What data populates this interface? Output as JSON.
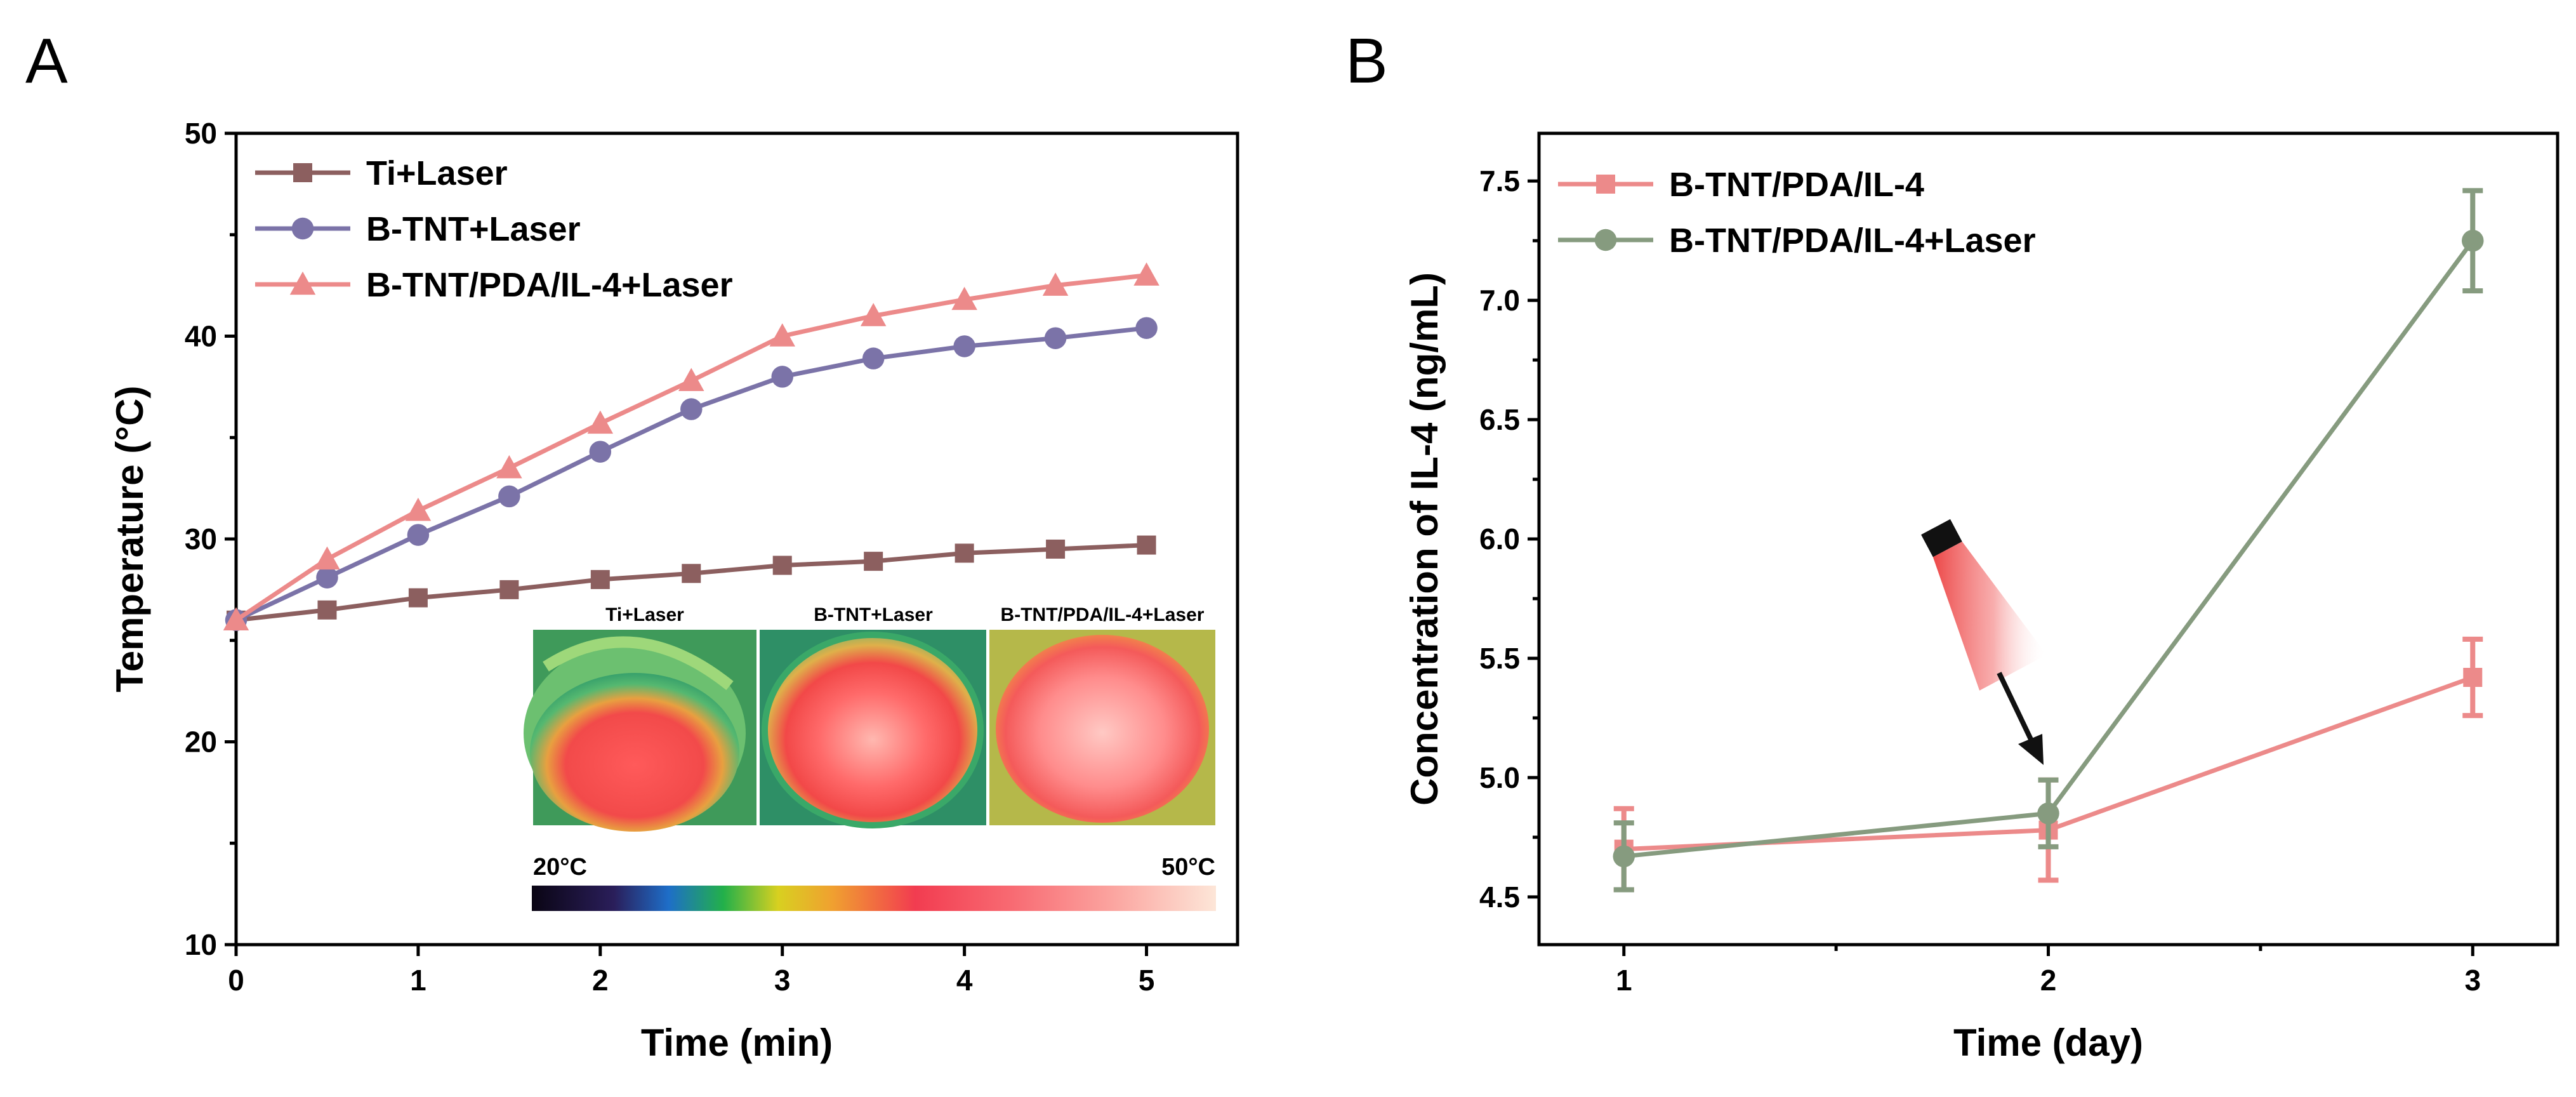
{
  "chart_data": [
    {
      "panel": "A",
      "type": "line",
      "xlabel": "Time (min)",
      "ylabel": "Temperature (°C)",
      "xlim": [
        0,
        5.5
      ],
      "ylim": [
        10,
        50
      ],
      "xticks": [
        0,
        1,
        2,
        3,
        4,
        5
      ],
      "yticks": [
        10,
        20,
        30,
        40,
        50
      ],
      "legend_position": "top-left",
      "x": [
        0,
        0.5,
        1,
        1.5,
        2,
        2.5,
        3,
        3.5,
        4,
        4.5,
        5
      ],
      "series": [
        {
          "name": "Ti+Laser",
          "color": "#8c5f5f",
          "marker": "square",
          "values": [
            26.0,
            26.5,
            27.1,
            27.5,
            28.0,
            28.3,
            28.7,
            28.9,
            29.3,
            29.5,
            29.7
          ]
        },
        {
          "name": "B-TNT+Laser",
          "color": "#7b73a8",
          "marker": "circle",
          "values": [
            26.0,
            28.1,
            30.2,
            32.1,
            34.3,
            36.4,
            38.0,
            38.9,
            39.5,
            39.9,
            40.4
          ]
        },
        {
          "name": "B-TNT/PDA/IL-4+Laser",
          "color": "#ec8a8a",
          "marker": "triangle",
          "values": [
            26.0,
            29.0,
            31.4,
            33.5,
            35.7,
            37.8,
            40.0,
            41.0,
            41.8,
            42.5,
            43.0
          ]
        }
      ],
      "inset": {
        "labels": [
          "Ti+Laser",
          "B-TNT+Laser",
          "B-TNT/PDA/IL-4+Laser"
        ],
        "colorbar_min": "20°C",
        "colorbar_max": "50°C"
      }
    },
    {
      "panel": "B",
      "type": "line",
      "xlabel": "Time (day)",
      "ylabel": "Concentration of IL-4 (ng/mL)",
      "xlim": [
        0.8,
        3.2
      ],
      "ylim": [
        4.3,
        7.7
      ],
      "xticks": [
        1,
        2,
        3
      ],
      "yticks": [
        4.5,
        5.0,
        5.5,
        6.0,
        6.5,
        7.0,
        7.5
      ],
      "legend_position": "top-left",
      "x": [
        1,
        2,
        3
      ],
      "series": [
        {
          "name": "B-TNT/PDA/IL-4",
          "color": "#ec8a8a",
          "marker": "square",
          "values": [
            4.7,
            4.78,
            5.42
          ],
          "errors": [
            0.17,
            0.21,
            0.16
          ]
        },
        {
          "name": "B-TNT/PDA/IL-4+Laser",
          "color": "#869b7f",
          "marker": "circle",
          "values": [
            4.67,
            4.85,
            7.25
          ],
          "errors": [
            0.14,
            0.14,
            0.21
          ]
        }
      ],
      "annotation": "laser-arrow-at-day-2"
    }
  ],
  "panels": {
    "a_label": "A",
    "b_label": "B"
  }
}
